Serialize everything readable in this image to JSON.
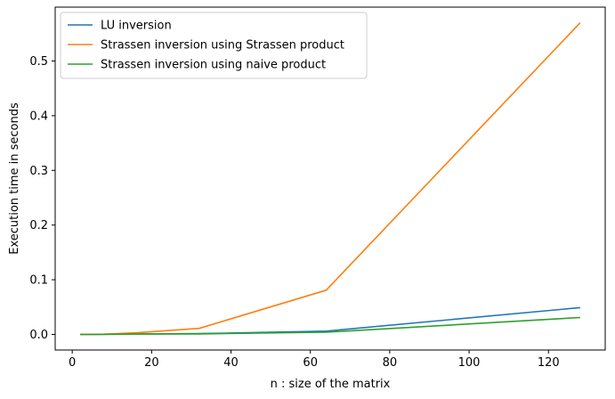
{
  "chart_data": {
    "type": "line",
    "xlabel": "n : size of the matrix",
    "ylabel": "Execution time in seconds",
    "xlim": [
      -4.3,
      134.3
    ],
    "ylim": [
      -0.0285,
      0.5985
    ],
    "xticks": [
      0,
      20,
      40,
      60,
      80,
      100,
      120
    ],
    "xtick_labels": [
      "0",
      "20",
      "40",
      "60",
      "80",
      "100",
      "120"
    ],
    "yticks": [
      0.0,
      0.1,
      0.2,
      0.3,
      0.4,
      0.5
    ],
    "ytick_labels": [
      "0.0",
      "0.1",
      "0.2",
      "0.3",
      "0.4",
      "0.5"
    ],
    "grid": false,
    "legend_position": "top-left",
    "series": [
      {
        "name": "LU inversion",
        "color": "#1f77b4",
        "x": [
          2,
          4,
          8,
          16,
          32,
          64,
          128
        ],
        "y": [
          0.0,
          0.0,
          0.0003,
          0.0008,
          0.0015,
          0.006,
          0.049
        ]
      },
      {
        "name": "Strassen inversion using Strassen product",
        "color": "#ff7f0e",
        "x": [
          2,
          4,
          8,
          16,
          32,
          64,
          128
        ],
        "y": [
          0.0,
          0.0,
          0.0005,
          0.003,
          0.011,
          0.081,
          0.57
        ]
      },
      {
        "name": "Strassen inversion using naive product",
        "color": "#2ca02c",
        "x": [
          2,
          4,
          8,
          16,
          32,
          64,
          128
        ],
        "y": [
          0.0,
          0.0,
          0.0002,
          0.0006,
          0.001,
          0.004,
          0.031
        ]
      }
    ]
  }
}
